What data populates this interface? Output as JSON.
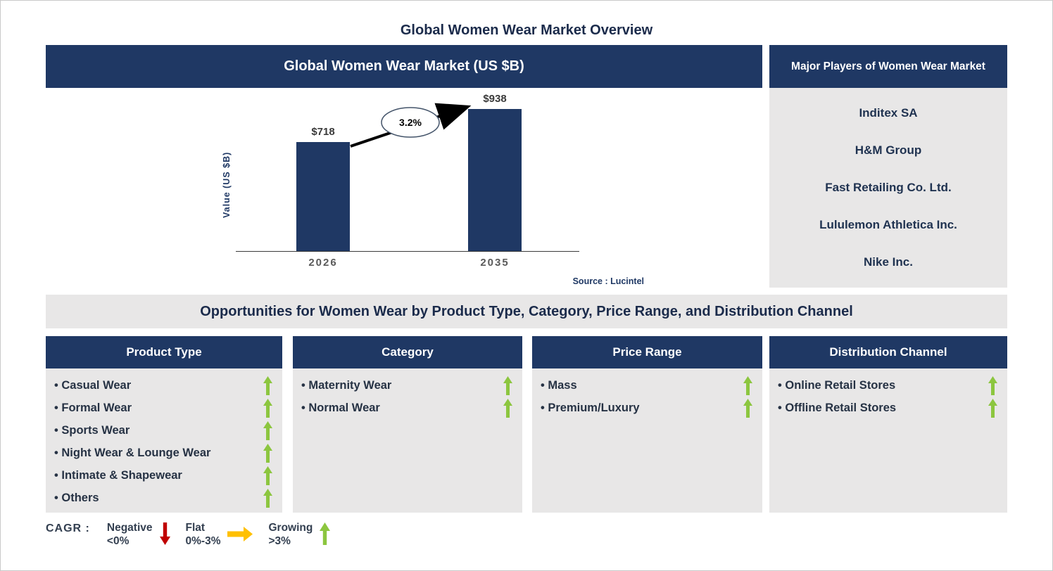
{
  "page": {
    "title": "Global Women Wear Market Overview"
  },
  "chart_panel": {
    "header": "Global Women Wear Market (US $B)",
    "source": "Source : Lucintel"
  },
  "chart_data": {
    "type": "bar",
    "title": "Global Women Wear Market (US $B)",
    "categories": [
      "2026",
      "2035"
    ],
    "values": [
      718,
      938
    ],
    "value_labels": [
      "$718",
      "$938"
    ],
    "xlabel": "",
    "ylabel": "Value (US $B)",
    "ylim": [
      0,
      960
    ],
    "grid": false,
    "legend_position": "none",
    "bar_color": "#1F3864",
    "cagr_label": "3.2%",
    "annotation": "CAGR 3.2% growth arrow from 2026 bar to 2035 bar"
  },
  "players": {
    "header": "Major Players of Women Wear Market",
    "items": [
      "Inditex SA",
      "H&M Group",
      "Fast Retailing Co. Ltd.",
      "Lululemon Athletica Inc.",
      "Nike Inc."
    ]
  },
  "opportunities": {
    "heading": "Opportunities for Women Wear by Product Type, Category, Price Range, and Distribution Channel",
    "columns": [
      {
        "header": "Product Type",
        "items": [
          "Casual Wear",
          "Formal Wear",
          "Sports Wear",
          "Night Wear & Lounge Wear",
          "Intimate & Shapewear",
          "Others"
        ],
        "trends": [
          "growing",
          "growing",
          "growing",
          "growing",
          "growing",
          "growing"
        ]
      },
      {
        "header": "Category",
        "items": [
          "Maternity Wear",
          "Normal Wear"
        ],
        "trends": [
          "growing",
          "growing"
        ]
      },
      {
        "header": "Price Range",
        "items": [
          "Mass",
          "Premium/Luxury"
        ],
        "trends": [
          "growing",
          "growing"
        ]
      },
      {
        "header": "Distribution Channel",
        "items": [
          "Online Retail Stores",
          "Offline Retail Stores"
        ],
        "trends": [
          "growing",
          "growing"
        ]
      }
    ]
  },
  "legend": {
    "label": "CAGR :",
    "items": [
      {
        "name": "Negative",
        "range": "<0%",
        "icon": "down-arrow",
        "color": "#C00000"
      },
      {
        "name": "Flat",
        "range": "0%-3%",
        "icon": "right-arrow",
        "color": "#FFC000"
      },
      {
        "name": "Growing",
        "range": ">3%",
        "icon": "up-arrow",
        "color": "#8CC63F"
      }
    ]
  },
  "colors": {
    "navy": "#1F3864",
    "panel_gray": "#E8E7E7",
    "growing_green": "#8CC63F",
    "negative_red": "#C00000",
    "flat_orange": "#FFC000",
    "heading_text": "#1B2B4B"
  }
}
